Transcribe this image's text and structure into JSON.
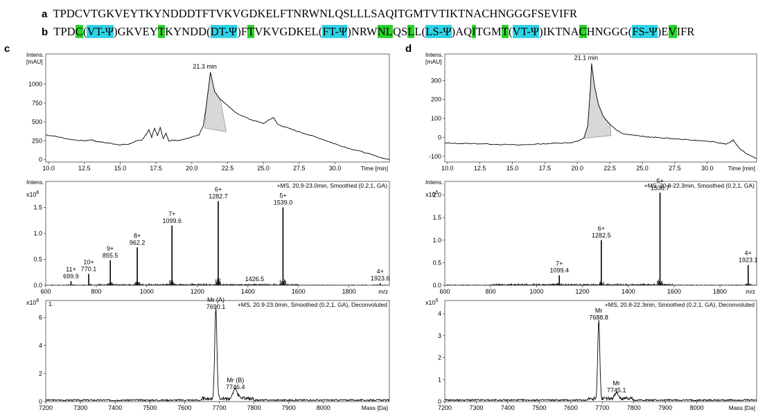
{
  "sequences": {
    "a": {
      "label": "a",
      "segments": [
        {
          "t": "TPDCVTGKVEYTKYNDDDTFTVKVGDKELFTNRWNLQSLLLSAQITGMTVTIKTNACHNGGGFSEVIFR",
          "h": ""
        }
      ]
    },
    "b": {
      "label": "b",
      "segments": [
        {
          "t": "TPD",
          "h": ""
        },
        {
          "t": "C",
          "h": "g"
        },
        {
          "t": "(",
          "h": ""
        },
        {
          "t": "VT-Ψ",
          "h": "c"
        },
        {
          "t": ")GKVEY",
          "h": ""
        },
        {
          "t": "T",
          "h": "g"
        },
        {
          "t": "KYNDD(",
          "h": ""
        },
        {
          "t": "DT-Ψ",
          "h": "c"
        },
        {
          "t": ")F",
          "h": ""
        },
        {
          "t": "T",
          "h": "g"
        },
        {
          "t": "VKVGDKEL(",
          "h": ""
        },
        {
          "t": "FT-Ψ",
          "h": "c"
        },
        {
          "t": ")NRW",
          "h": ""
        },
        {
          "t": "NL",
          "h": "g"
        },
        {
          "t": "QS",
          "h": ""
        },
        {
          "t": "L",
          "h": "g"
        },
        {
          "t": "L(",
          "h": ""
        },
        {
          "t": "LS-Ψ",
          "h": "c"
        },
        {
          "t": ")AQ",
          "h": ""
        },
        {
          "t": "I",
          "h": "g"
        },
        {
          "t": "TGM",
          "h": ""
        },
        {
          "t": "T",
          "h": "g"
        },
        {
          "t": "(",
          "h": ""
        },
        {
          "t": "VT-Ψ",
          "h": "c"
        },
        {
          "t": ")IKTNA",
          "h": ""
        },
        {
          "t": "C",
          "h": "g"
        },
        {
          "t": "HNGGG(",
          "h": ""
        },
        {
          "t": "FS-Ψ",
          "h": "c"
        },
        {
          "t": ")E",
          "h": ""
        },
        {
          "t": "V",
          "h": "g"
        },
        {
          "t": "IFR",
          "h": ""
        }
      ]
    }
  },
  "panel_letters": {
    "c": "c",
    "d": "d"
  },
  "chart_data": [
    {
      "id": "c1",
      "type": "line",
      "xlabel": "Time [min]",
      "ylabel": "Intens.\n[mAU]",
      "xlim": [
        9.8,
        33.8
      ],
      "ylim": [
        -30,
        1400
      ],
      "xticks": [
        10.0,
        12.5,
        15.0,
        17.5,
        20.0,
        22.5,
        25.0,
        27.5,
        30.0
      ],
      "yticks": [
        0,
        250,
        500,
        750,
        1000
      ],
      "tick_labels_x": [
        "10.0",
        "12.5",
        "15.0",
        "17.5",
        "20.0",
        "22.5",
        "25.0",
        "27.5",
        "30.0"
      ],
      "tick_labels_y": [
        "0",
        "250",
        "500",
        "750",
        "1000"
      ],
      "x": [
        9.8,
        10.5,
        11.5,
        12.5,
        13.0,
        13.3,
        14.0,
        15.0,
        15.6,
        16.0,
        16.5,
        16.8,
        17.0,
        17.2,
        17.4,
        17.6,
        17.8,
        18.0,
        18.2,
        18.4,
        18.7,
        19.0,
        19.5,
        20.0,
        20.5,
        20.8,
        21.0,
        21.2,
        21.3,
        21.6,
        22.0,
        22.5,
        23.0,
        24.0,
        25.0,
        25.7,
        26.0,
        27.0,
        28.0,
        29.0,
        30.0,
        31.0,
        32.0,
        33.0,
        33.8
      ],
      "y": [
        330,
        310,
        270,
        250,
        265,
        245,
        225,
        200,
        205,
        240,
        260,
        330,
        400,
        300,
        420,
        320,
        430,
        280,
        350,
        250,
        260,
        250,
        270,
        300,
        330,
        450,
        700,
        1000,
        1160,
        900,
        800,
        720,
        630,
        540,
        480,
        560,
        470,
        400,
        340,
        280,
        210,
        150,
        100,
        40,
        0
      ],
      "peak_label": "21.3 min",
      "peak_x": 21.3,
      "peak_y": 1160,
      "shade_from": [
        20.9,
        420
      ],
      "shade_to": [
        22.4,
        370
      ]
    },
    {
      "id": "c2",
      "type": "bar",
      "xlabel": "m/z",
      "ylabel": "Intens.",
      "exponent": "x10^6",
      "title": "+MS, 20.9-23.0min, Smoothed (0.2,1, GA)",
      "xlim": [
        600,
        1960
      ],
      "ylim": [
        0,
        2.0
      ],
      "xticks": [
        600,
        800,
        1000,
        1200,
        1400,
        1600,
        1800
      ],
      "yticks": [
        0.0,
        0.5,
        1.0,
        1.5
      ],
      "tick_labels_x": [
        "600",
        "800",
        "1000",
        "1200",
        "1400",
        "1600",
        "1800"
      ],
      "tick_labels_y": [
        "0.0",
        "0.5",
        "1.0",
        "1.5"
      ],
      "peaks": [
        {
          "x": 699.9,
          "y": 0.08,
          "label": "699.9",
          "charge": "11+"
        },
        {
          "x": 770.1,
          "y": 0.22,
          "label": "770.1",
          "charge": "10+"
        },
        {
          "x": 855.5,
          "y": 0.48,
          "label": "855.5",
          "charge": "9+"
        },
        {
          "x": 962.2,
          "y": 0.73,
          "label": "962.2",
          "charge": "8+"
        },
        {
          "x": 1099.6,
          "y": 1.15,
          "label": "1099.6",
          "charge": "7+"
        },
        {
          "x": 1282.7,
          "y": 1.62,
          "label": "1282.7",
          "charge": "6+"
        },
        {
          "x": 1426.5,
          "y": 0.03,
          "label": "1426.5",
          "charge": ""
        },
        {
          "x": 1539.0,
          "y": 1.5,
          "label": "1539.0",
          "charge": "5+"
        },
        {
          "x": 1923.6,
          "y": 0.04,
          "label": "1923.6",
          "charge": "4+"
        }
      ]
    },
    {
      "id": "c3",
      "type": "line",
      "xlabel": "Mass [Da]",
      "ylabel": "",
      "exponent": "x10^6",
      "corner_label": "1.",
      "title": "+MS, 20.9-23.0min, Smoothed (0.2,1, GA), Deconvoluted",
      "xlim": [
        7200,
        8190
      ],
      "ylim": [
        0,
        7.2
      ],
      "xticks": [
        7200,
        7300,
        7400,
        7500,
        7600,
        7700,
        7800,
        7900,
        8000
      ],
      "yticks": [
        0,
        2,
        4,
        6
      ],
      "tick_labels_x": [
        "7200",
        "7300",
        "7400",
        "7500",
        "7600",
        "7700",
        "7800",
        "7900",
        "8000"
      ],
      "tick_labels_y": [
        "0",
        "2",
        "4",
        "6"
      ],
      "peaks": [
        {
          "x": 7690.1,
          "y": 6.4,
          "label": "7690.1",
          "name": "Mr (A)"
        },
        {
          "x": 7746.4,
          "y": 0.7,
          "label": "7746.4",
          "name": "Mr (B)"
        }
      ]
    },
    {
      "id": "d1",
      "type": "line",
      "xlabel": "Time [min]",
      "ylabel": "Intens.\n[mAU]",
      "xlim": [
        9.8,
        33.8
      ],
      "ylim": [
        -130,
        440
      ],
      "xticks": [
        10.0,
        12.5,
        15.0,
        17.5,
        20.0,
        22.5,
        25.0,
        27.5,
        30.0
      ],
      "yticks": [
        -100,
        0,
        100,
        200,
        300
      ],
      "tick_labels_x": [
        "10.0",
        "12.5",
        "15.0",
        "17.5",
        "20.0",
        "22.5",
        "25.0",
        "27.5",
        "30.0"
      ],
      "tick_labels_y": [
        "-100",
        "0",
        "100",
        "200",
        "300"
      ],
      "x": [
        9.8,
        11.0,
        12.5,
        14.0,
        15.5,
        17.0,
        18.5,
        19.5,
        20.0,
        20.5,
        20.8,
        21.0,
        21.1,
        21.3,
        21.6,
        22.0,
        22.5,
        23.0,
        23.5,
        24.0,
        25.0,
        26.0,
        27.0,
        28.0,
        29.0,
        30.0,
        31.0,
        31.5,
        32.0,
        32.5,
        33.0,
        33.8
      ],
      "y": [
        -30,
        -32,
        -33,
        -37,
        -40,
        -35,
        -30,
        -28,
        -20,
        -5,
        60,
        250,
        390,
        280,
        180,
        110,
        70,
        40,
        20,
        15,
        5,
        0,
        -5,
        -10,
        -15,
        -20,
        -30,
        -35,
        -15,
        -60,
        -85,
        -110
      ],
      "peak_label": "21.1 min",
      "peak_x": 21.1,
      "peak_y": 390,
      "shade_from": [
        20.5,
        -5
      ],
      "shade_to": [
        22.6,
        10
      ]
    },
    {
      "id": "d2",
      "type": "bar",
      "xlabel": "m/z",
      "ylabel": "Intens.",
      "exponent": "x10^5",
      "title": "+MS, 20.8-22.3min, Smoothed (0.2,1, GA)",
      "xlim": [
        600,
        1960
      ],
      "ylim": [
        0,
        2.3
      ],
      "xticks": [
        600,
        800,
        1000,
        1200,
        1400,
        1600,
        1800
      ],
      "yticks": [
        0.0,
        0.5,
        1.0,
        1.5,
        2.0
      ],
      "tick_labels_x": [
        "600",
        "800",
        "1000",
        "1200",
        "1400",
        "1600",
        "1800"
      ],
      "tick_labels_y": [
        "0.0",
        "0.5",
        "1.0",
        "1.5",
        "2.0"
      ],
      "peaks": [
        {
          "x": 1099.4,
          "y": 0.22,
          "label": "1099.4",
          "charge": "7+"
        },
        {
          "x": 1282.5,
          "y": 1.0,
          "label": "1282.5",
          "charge": "6+"
        },
        {
          "x": 1538.7,
          "y": 2.05,
          "label": "1538.7",
          "charge": "5+"
        },
        {
          "x": 1923.1,
          "y": 0.45,
          "label": "1923.1",
          "charge": "4+"
        }
      ]
    },
    {
      "id": "d3",
      "type": "line",
      "xlabel": "Mass [Da]",
      "ylabel": "",
      "exponent": "x10^5",
      "title": "+MS, 20.8-22.3min, Smoothed (0.2,1, GA), Deconvoluted",
      "xlim": [
        7200,
        8190
      ],
      "ylim": [
        0,
        4.6
      ],
      "xticks": [
        7200,
        7300,
        7400,
        7500,
        7600,
        7700,
        7800,
        7900,
        8000
      ],
      "yticks": [
        0,
        1,
        2,
        3,
        4
      ],
      "tick_labels_x": [
        "7200",
        "7300",
        "7400",
        "7500",
        "7600",
        "7700",
        "7800",
        "7900",
        "8000"
      ],
      "tick_labels_y": [
        "0",
        "1",
        "2",
        "3",
        "4"
      ],
      "peaks": [
        {
          "x": 7688.8,
          "y": 3.6,
          "label": "7688.8",
          "name": "Mr"
        },
        {
          "x": 7745.1,
          "y": 0.3,
          "label": "7745.1",
          "name": "Mr"
        }
      ]
    }
  ]
}
